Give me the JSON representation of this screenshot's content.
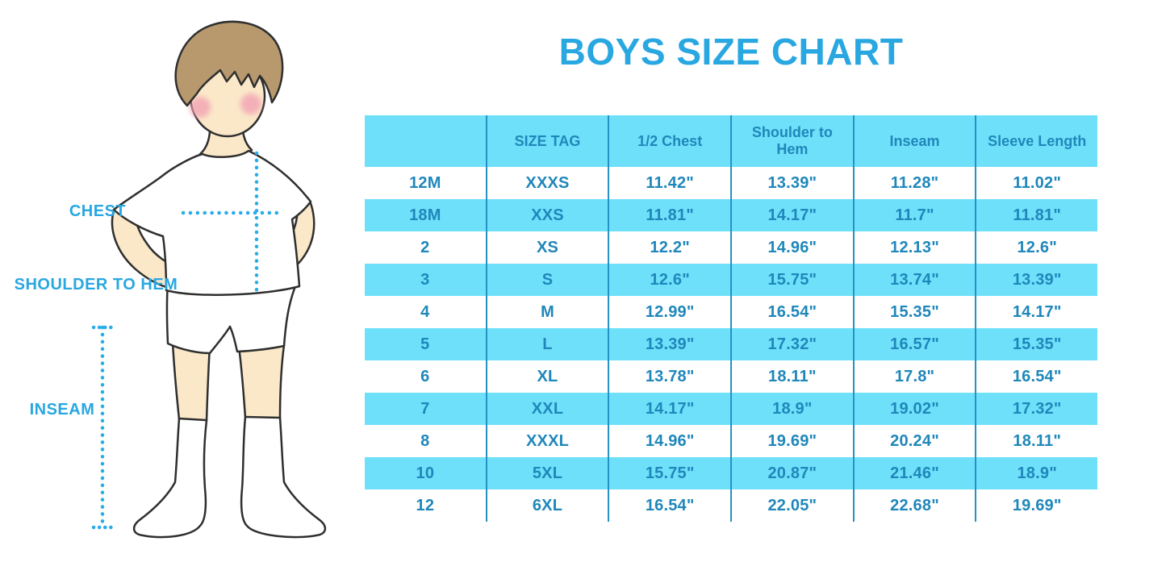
{
  "title": "BOYS SIZE CHART",
  "illustration": {
    "chest_label": "CHEST",
    "shoulder_to_hem_label": "SHOULDER TO HEM",
    "inseam_label": "INSEAM"
  },
  "chart_data": {
    "type": "table",
    "title": "BOYS SIZE CHART",
    "columns": [
      "",
      "SIZE TAG",
      "1/2 Chest",
      "Shoulder to Hem",
      "Inseam",
      "Sleeve Length"
    ],
    "rows": [
      [
        "12M",
        "XXXS",
        "11.42\"",
        "13.39\"",
        "11.28\"",
        "11.02\""
      ],
      [
        "18M",
        "XXS",
        "11.81\"",
        "14.17\"",
        "11.7\"",
        "11.81\""
      ],
      [
        "2",
        "XS",
        "12.2\"",
        "14.96\"",
        "12.13\"",
        "12.6\""
      ],
      [
        "3",
        "S",
        "12.6\"",
        "15.75\"",
        "13.74\"",
        "13.39\""
      ],
      [
        "4",
        "M",
        "12.99\"",
        "16.54\"",
        "15.35\"",
        "14.17\""
      ],
      [
        "5",
        "L",
        "13.39\"",
        "17.32\"",
        "16.57\"",
        "15.35\""
      ],
      [
        "6",
        "XL",
        "13.78\"",
        "18.11\"",
        "17.8\"",
        "16.54\""
      ],
      [
        "7",
        "XXL",
        "14.17\"",
        "18.9\"",
        "19.02\"",
        "17.32\""
      ],
      [
        "8",
        "XXXL",
        "14.96\"",
        "19.69\"",
        "20.24\"",
        "18.11\""
      ],
      [
        "10",
        "5XL",
        "15.75\"",
        "20.87\"",
        "21.46\"",
        "18.9\""
      ],
      [
        "12",
        "6XL",
        "16.54\"",
        "22.05\"",
        "22.68\"",
        "19.69\""
      ]
    ]
  },
  "colors": {
    "accent_blue": "#29a7e1",
    "table_text": "#1f87ba",
    "row_cyan": "#6fe0fa",
    "divider": "#2492c4",
    "dotted_line": "#2aace8",
    "skin": "#fbe8c9",
    "hair": "#b8996e",
    "blush": "#f2a3b3",
    "outline": "#2f2f2f"
  }
}
